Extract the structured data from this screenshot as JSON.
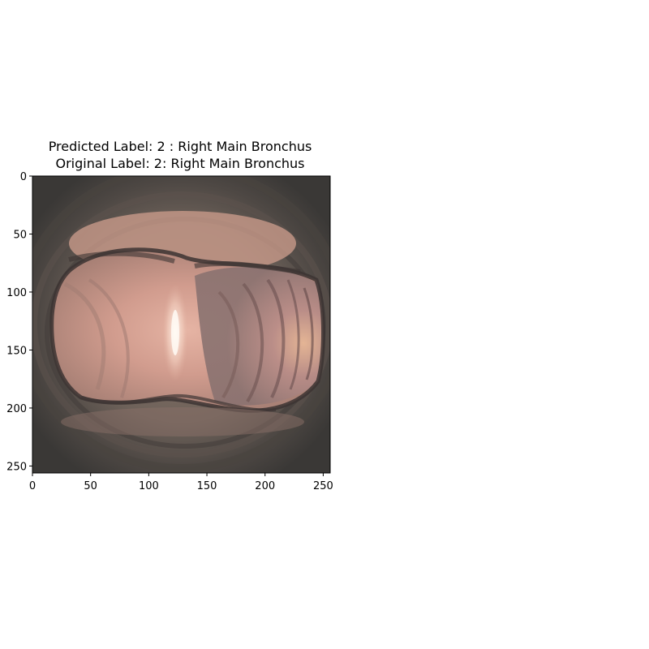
{
  "figure": {
    "title_line1": "Predicted Label: 2 : Right Main Bronchus",
    "title_line2": "Original Label: 2: Right Main Bronchus"
  },
  "image_panel": {
    "x_tick_labels": [
      "0",
      "50",
      "100",
      "150",
      "200",
      "250"
    ],
    "y_tick_labels": [
      "0",
      "50",
      "100",
      "150",
      "200",
      "250"
    ],
    "x_tick_values": [
      0,
      50,
      100,
      150,
      200,
      250
    ],
    "y_tick_values": [
      0,
      50,
      100,
      150,
      200,
      250
    ],
    "xlim": [
      0,
      256
    ],
    "ylim": [
      256,
      0
    ],
    "image_description_colors": {
      "background_dark": "#3a3836",
      "wall_mid": "#7a6a62",
      "lumen_pink": "#d9a594",
      "highlight": "#fff4ec"
    }
  }
}
